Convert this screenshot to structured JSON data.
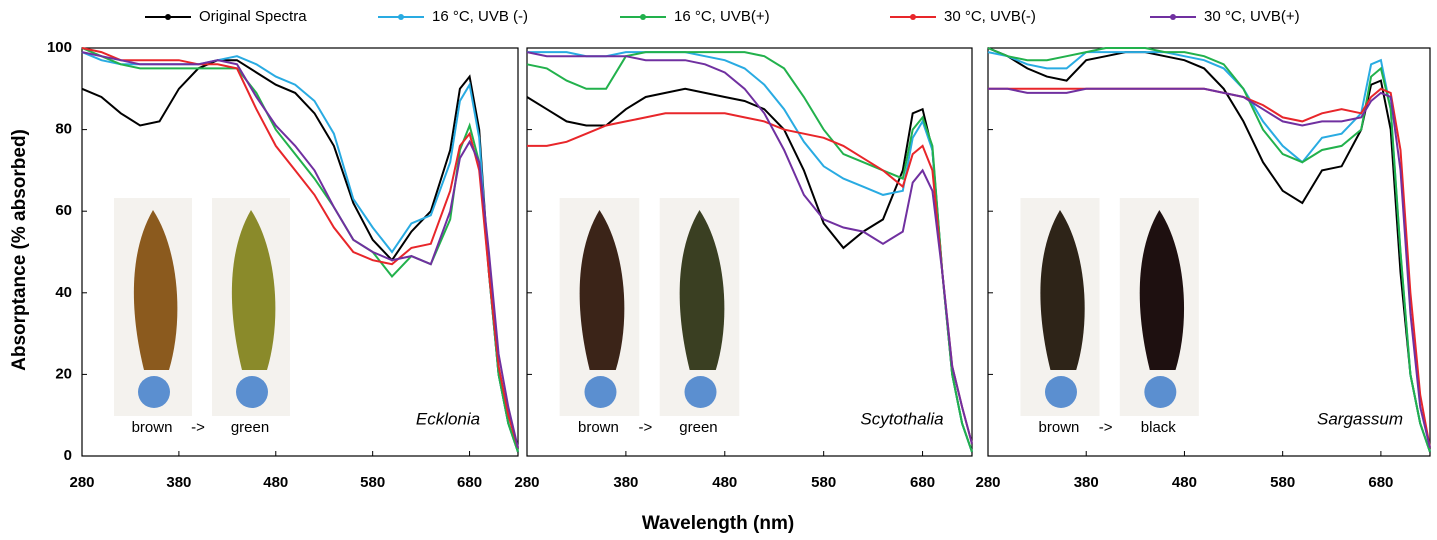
{
  "legend": [
    {
      "name": "Original Spectra",
      "color": "#000000"
    },
    {
      "name": "16 °C, UVB (-)",
      "color": "#29abe2"
    },
    {
      "name": "16 °C, UVB(+)",
      "color": "#22b14c"
    },
    {
      "name": "30 °C, UVB(-)",
      "color": "#e8262a"
    },
    {
      "name": "30 °C, UVB(+)",
      "color": "#7030a0"
    }
  ],
  "xlabel": "Wavelength (nm)",
  "ylabel": "Absorptance (% absorbed)",
  "chart_data": [
    {
      "type": "line",
      "title": "Ecklonia",
      "annotations": [
        "brown",
        "->",
        "green"
      ],
      "x": [
        280,
        300,
        320,
        340,
        360,
        380,
        400,
        420,
        440,
        460,
        480,
        500,
        520,
        540,
        560,
        580,
        600,
        620,
        640,
        660,
        670,
        680,
        690,
        700,
        710,
        720,
        730
      ],
      "xlim": [
        280,
        730
      ],
      "xticks": [
        280,
        380,
        480,
        580,
        680
      ],
      "ylim": [
        0,
        100
      ],
      "yticks": [
        0,
        20,
        40,
        60,
        80,
        100
      ],
      "series": [
        {
          "values": [
            90,
            88,
            84,
            81,
            82,
            90,
            95,
            97,
            97,
            94,
            91,
            89,
            84,
            76,
            62,
            53,
            48,
            55,
            60,
            75,
            90,
            93,
            80,
            45,
            20,
            8,
            1
          ]
        },
        {
          "values": [
            99,
            97,
            96,
            96,
            96,
            96,
            96,
            97,
            98,
            96,
            93,
            91,
            87,
            79,
            63,
            56,
            50,
            57,
            59,
            72,
            87,
            91,
            78,
            45,
            20,
            8,
            1
          ]
        },
        {
          "values": [
            100,
            98,
            96,
            95,
            95,
            95,
            95,
            95,
            95,
            89,
            80,
            74,
            68,
            61,
            53,
            50,
            44,
            49,
            47,
            58,
            75,
            81,
            72,
            45,
            20,
            8,
            1
          ]
        },
        {
          "values": [
            100,
            99,
            97,
            97,
            97,
            97,
            96,
            96,
            95,
            85,
            76,
            70,
            64,
            56,
            50,
            48,
            47,
            51,
            52,
            65,
            76,
            79,
            70,
            45,
            22,
            10,
            2
          ]
        },
        {
          "values": [
            99,
            98,
            97,
            96,
            96,
            96,
            96,
            97,
            96,
            88,
            81,
            76,
            70,
            61,
            53,
            50,
            48,
            49,
            47,
            60,
            73,
            77,
            72,
            50,
            25,
            12,
            2
          ]
        }
      ]
    },
    {
      "type": "line",
      "title": "Scytothalia",
      "annotations": [
        "brown",
        "->",
        "green"
      ],
      "x": [
        280,
        300,
        320,
        340,
        360,
        380,
        400,
        420,
        440,
        460,
        480,
        500,
        520,
        540,
        560,
        580,
        600,
        620,
        640,
        660,
        670,
        680,
        690,
        700,
        710,
        720,
        730
      ],
      "xlim": [
        280,
        730
      ],
      "xticks": [
        280,
        380,
        480,
        580,
        680
      ],
      "ylim": [
        0,
        100
      ],
      "yticks": [
        0,
        20,
        40,
        60,
        80,
        100
      ],
      "series": [
        {
          "values": [
            88,
            85,
            82,
            81,
            81,
            85,
            88,
            89,
            90,
            89,
            88,
            87,
            85,
            80,
            70,
            57,
            51,
            55,
            58,
            70,
            84,
            85,
            75,
            45,
            20,
            8,
            1
          ]
        },
        {
          "values": [
            99,
            99,
            99,
            98,
            98,
            99,
            99,
            99,
            99,
            98,
            97,
            95,
            91,
            85,
            77,
            71,
            68,
            66,
            64,
            65,
            78,
            82,
            75,
            45,
            20,
            8,
            1
          ]
        },
        {
          "values": [
            96,
            95,
            92,
            90,
            90,
            98,
            99,
            99,
            99,
            99,
            99,
            99,
            98,
            95,
            88,
            80,
            74,
            72,
            70,
            68,
            80,
            83,
            76,
            45,
            20,
            8,
            1
          ]
        },
        {
          "values": [
            76,
            76,
            77,
            79,
            81,
            82,
            83,
            84,
            84,
            84,
            84,
            83,
            82,
            80,
            79,
            78,
            76,
            73,
            70,
            66,
            74,
            76,
            70,
            45,
            22,
            12,
            3
          ]
        },
        {
          "values": [
            99,
            98,
            98,
            98,
            98,
            98,
            97,
            97,
            97,
            96,
            94,
            90,
            84,
            75,
            64,
            58,
            56,
            55,
            52,
            55,
            67,
            70,
            65,
            45,
            22,
            12,
            3
          ]
        }
      ]
    },
    {
      "type": "line",
      "title": "Sargassum",
      "annotations": [
        "brown",
        "->",
        "black"
      ],
      "x": [
        280,
        300,
        320,
        340,
        360,
        380,
        400,
        420,
        440,
        460,
        480,
        500,
        520,
        540,
        560,
        580,
        600,
        620,
        640,
        660,
        670,
        680,
        690,
        700,
        710,
        720,
        730
      ],
      "xlim": [
        280,
        730
      ],
      "xticks": [
        280,
        380,
        480,
        580,
        680
      ],
      "ylim": [
        0,
        100
      ],
      "yticks": [
        0,
        20,
        40,
        60,
        80,
        100
      ],
      "series": [
        {
          "values": [
            100,
            98,
            95,
            93,
            92,
            97,
            98,
            99,
            99,
            98,
            97,
            95,
            90,
            82,
            72,
            65,
            62,
            70,
            71,
            80,
            91,
            92,
            80,
            45,
            20,
            8,
            1
          ]
        },
        {
          "values": [
            99,
            98,
            96,
            95,
            95,
            99,
            99,
            99,
            99,
            99,
            98,
            97,
            95,
            90,
            82,
            76,
            72,
            78,
            79,
            84,
            96,
            97,
            85,
            50,
            20,
            8,
            1
          ]
        },
        {
          "values": [
            100,
            98,
            97,
            97,
            98,
            99,
            100,
            100,
            100,
            99,
            99,
            98,
            96,
            90,
            80,
            74,
            72,
            75,
            76,
            80,
            93,
            95,
            85,
            50,
            20,
            8,
            1
          ]
        },
        {
          "values": [
            90,
            90,
            90,
            90,
            90,
            90,
            90,
            90,
            90,
            90,
            90,
            90,
            89,
            88,
            86,
            83,
            82,
            84,
            85,
            84,
            88,
            90,
            89,
            75,
            40,
            15,
            2
          ]
        },
        {
          "values": [
            90,
            90,
            89,
            89,
            89,
            90,
            90,
            90,
            90,
            90,
            90,
            90,
            89,
            88,
            85,
            82,
            81,
            82,
            82,
            83,
            87,
            89,
            88,
            70,
            35,
            12,
            2
          ]
        }
      ]
    }
  ]
}
